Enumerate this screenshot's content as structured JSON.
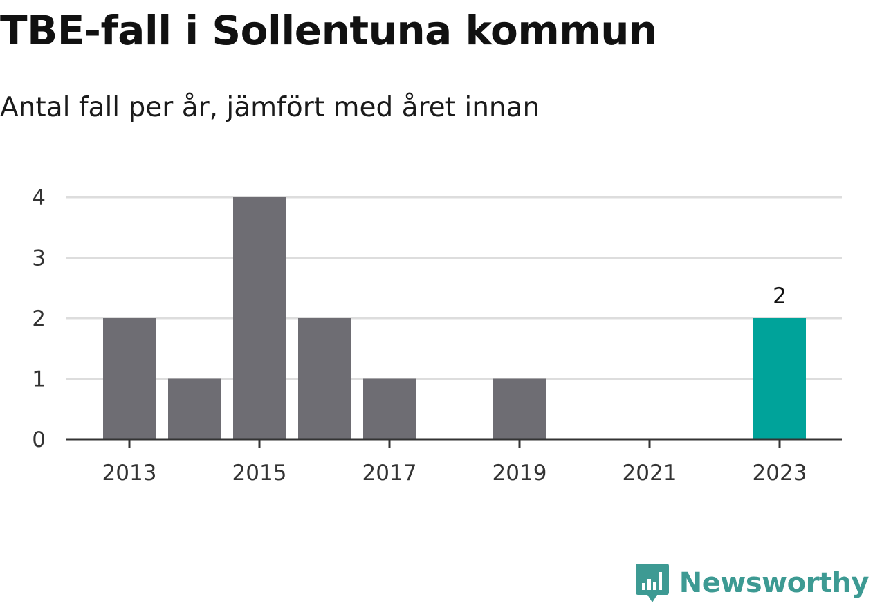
{
  "header": {
    "title": "TBE-fall i Sollentuna kommun",
    "subtitle": "Antal fall per år, jämfört med året innan"
  },
  "chart_data": {
    "type": "bar",
    "title": "TBE-fall i Sollentuna kommun",
    "subtitle": "Antal fall per år, jämfört med året innan",
    "categories": [
      "2013",
      "2014",
      "2015",
      "2016",
      "2017",
      "2018",
      "2019",
      "2020",
      "2021",
      "2022",
      "2023"
    ],
    "values": [
      2,
      1,
      4,
      2,
      1,
      0,
      1,
      0,
      0,
      0,
      2
    ],
    "x_tick_labels": [
      "2013",
      "2015",
      "2017",
      "2019",
      "2021",
      "2023"
    ],
    "y_ticks": [
      0,
      1,
      2,
      3,
      4
    ],
    "ylim": [
      0,
      4
    ],
    "xlabel": "",
    "ylabel": "",
    "grid": true,
    "highlight": {
      "category": "2023",
      "label": "2"
    },
    "colors": {
      "bar": "#6e6d73",
      "highlight": "#00a39a",
      "grid": "#dddddd",
      "axis": "#333333"
    }
  },
  "branding": {
    "name": "Newsworthy",
    "icon": "newsworthy-logo-icon",
    "color": "#3d9a93"
  }
}
